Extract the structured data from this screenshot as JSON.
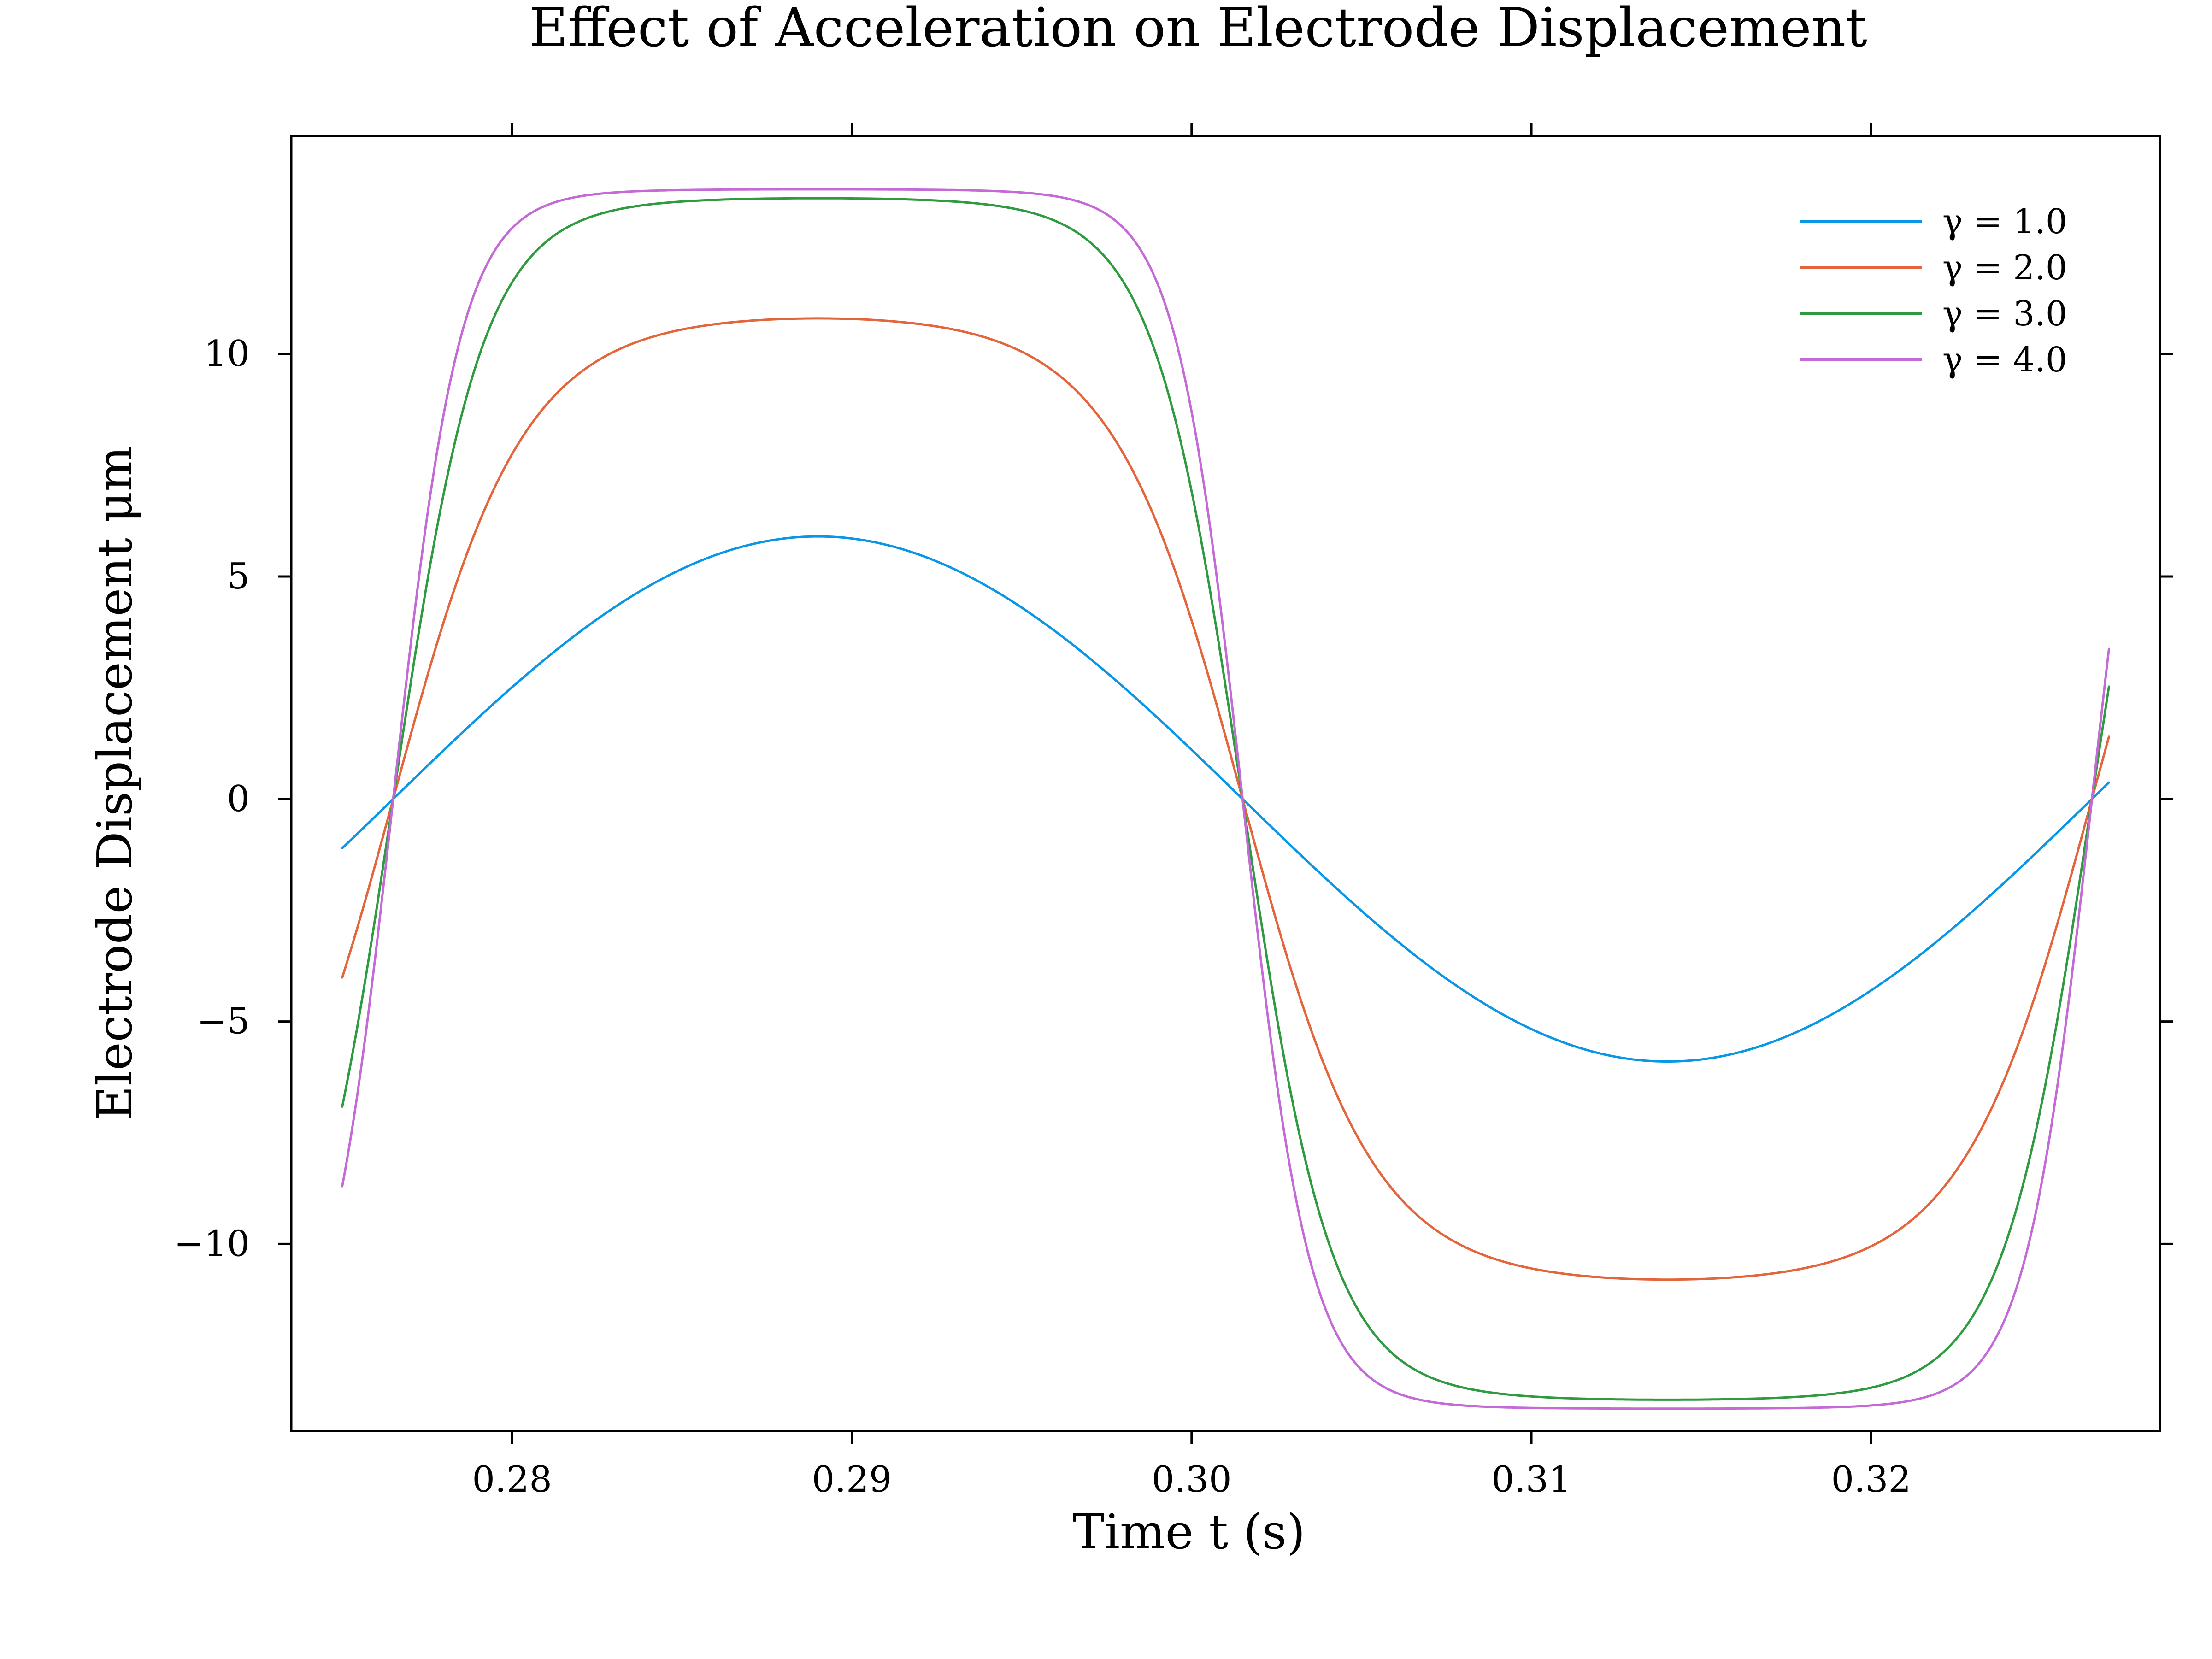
{
  "chart_data": {
    "type": "line",
    "title": "Effect of Acceleration on Electrode Displacement",
    "xlabel": "Time t (s)",
    "ylabel": "Electrode Displacement μm",
    "xlim": [
      0.2735,
      0.3285
    ],
    "ylim": [
      -14.2,
      14.9
    ],
    "xticks": [
      0.28,
      0.29,
      0.3,
      0.31,
      0.32
    ],
    "xtick_labels": [
      "0.28",
      "0.29",
      "0.30",
      "0.31",
      "0.32"
    ],
    "yticks": [
      10,
      5,
      0,
      -5,
      -10
    ],
    "ytick_labels": [
      "10",
      "5",
      "0",
      "−5",
      "−10"
    ],
    "grid": false,
    "legend_position": "top-right",
    "x_range": [
      0.275,
      0.327
    ],
    "frequency_hz": 20,
    "zero_crossing_t": 0.2765,
    "series": [
      {
        "name": "γ = 1.0",
        "gamma": 1.0,
        "amplitude": 5.9,
        "color": "#0a96e6"
      },
      {
        "name": "γ = 2.0",
        "gamma": 2.0,
        "amplitude": 10.8,
        "color": "#e4643c"
      },
      {
        "name": "γ = 3.0",
        "gamma": 3.0,
        "amplitude": 13.5,
        "color": "#2f9b40"
      },
      {
        "name": "γ = 4.0",
        "gamma": 4.0,
        "amplitude": 13.7,
        "color": "#c36ad6"
      }
    ]
  }
}
